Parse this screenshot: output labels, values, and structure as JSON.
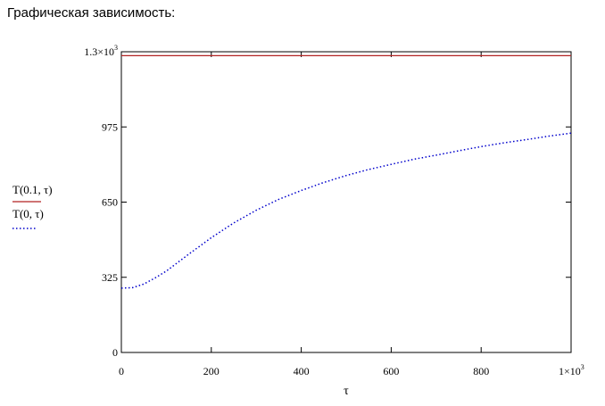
{
  "heading": "Графическая зависимость:",
  "chart_data": {
    "type": "line",
    "xlabel": "τ",
    "ylabel": "",
    "xlim": [
      0,
      1000
    ],
    "ylim": [
      0,
      1300
    ],
    "x_ticks": [
      {
        "value": 0,
        "label": "0"
      },
      {
        "value": 200,
        "label": "200"
      },
      {
        "value": 400,
        "label": "400"
      },
      {
        "value": 600,
        "label": "600"
      },
      {
        "value": 800,
        "label": "800"
      },
      {
        "value": 1000,
        "label": "1×10",
        "sup": "3"
      }
    ],
    "y_ticks": [
      {
        "value": 0,
        "label": "0"
      },
      {
        "value": 325,
        "label": "325"
      },
      {
        "value": 650,
        "label": "650"
      },
      {
        "value": 975,
        "label": "975"
      },
      {
        "value": 1300,
        "label": "1.3×10",
        "sup": "3"
      }
    ],
    "series": [
      {
        "name": "T(0.1, τ)",
        "color": "#b22222",
        "style": "solid",
        "x": [
          0,
          1000
        ],
        "y": [
          1283,
          1283
        ]
      },
      {
        "name": "T(0, τ)",
        "color": "#0000cc",
        "style": "dotted",
        "x": [
          0,
          25,
          50,
          75,
          100,
          150,
          200,
          250,
          300,
          350,
          400,
          450,
          500,
          550,
          600,
          650,
          700,
          750,
          800,
          850,
          900,
          950,
          1000
        ],
        "y": [
          278,
          280,
          296,
          322,
          352,
          425,
          496,
          560,
          615,
          662,
          700,
          735,
          765,
          791,
          813,
          835,
          853,
          872,
          890,
          906,
          920,
          935,
          948
        ]
      }
    ]
  }
}
